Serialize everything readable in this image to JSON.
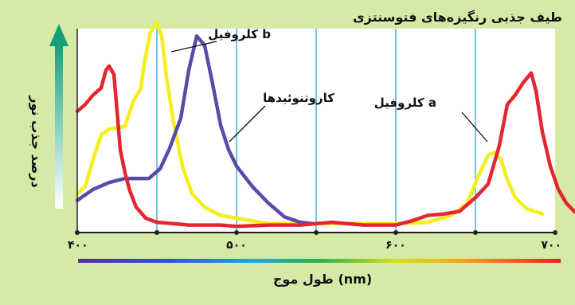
{
  "chart_data": {
    "type": "line",
    "title": "طیف جذبی رنگیزه‌های فتوسنتزی",
    "xlabel": "طول موج (nm)",
    "ylabel": "درصد جذب نور",
    "xlim": [
      400,
      700
    ],
    "x_ticks": [
      {
        "value": 400,
        "label": "۴۰۰"
      },
      {
        "value": 500,
        "label": "۵۰۰"
      },
      {
        "value": 600,
        "label": "۶۰۰"
      },
      {
        "value": 700,
        "label": "۷۰۰"
      }
    ],
    "vertical_gridlines": [
      450,
      500,
      550,
      600,
      650
    ],
    "background_color": "#d6eaa8",
    "series": [
      {
        "name": "کلروفیل b",
        "color": "#f4ee1c",
        "points": [
          [
            400,
            25
          ],
          [
            405,
            30
          ],
          [
            410,
            50
          ],
          [
            415,
            68
          ],
          [
            420,
            72
          ],
          [
            425,
            73
          ],
          [
            430,
            74
          ],
          [
            435,
            92
          ],
          [
            440,
            102
          ],
          [
            442,
            120
          ],
          [
            446,
            143
          ],
          [
            450,
            150
          ],
          [
            453,
            140
          ],
          [
            456,
            110
          ],
          [
            460,
            80
          ],
          [
            466,
            45
          ],
          [
            472,
            25
          ],
          [
            480,
            15
          ],
          [
            490,
            9
          ],
          [
            500,
            7
          ],
          [
            520,
            3
          ],
          [
            540,
            3
          ],
          [
            560,
            3
          ],
          [
            580,
            3
          ],
          [
            600,
            3
          ],
          [
            620,
            4
          ],
          [
            635,
            9
          ],
          [
            645,
            18
          ],
          [
            652,
            38
          ],
          [
            658,
            53
          ],
          [
            662,
            55
          ],
          [
            666,
            50
          ],
          [
            670,
            35
          ],
          [
            675,
            22
          ],
          [
            682,
            14
          ],
          [
            690,
            11
          ],
          [
            692,
            10
          ]
        ]
      },
      {
        "name": "کاروتنوئیدها",
        "color": "#5b4ba8",
        "points": [
          [
            400,
            20
          ],
          [
            410,
            28
          ],
          [
            420,
            33
          ],
          [
            430,
            36
          ],
          [
            440,
            36
          ],
          [
            445,
            36
          ],
          [
            452,
            43
          ],
          [
            458,
            58
          ],
          [
            465,
            80
          ],
          [
            470,
            115
          ],
          [
            475,
            140
          ],
          [
            480,
            133
          ],
          [
            485,
            105
          ],
          [
            490,
            75
          ],
          [
            495,
            57
          ],
          [
            500,
            45
          ],
          [
            510,
            30
          ],
          [
            520,
            18
          ],
          [
            530,
            8
          ],
          [
            540,
            4
          ],
          [
            548,
            3
          ]
        ]
      },
      {
        "name": "کلروفیل a",
        "color": "#e3262f",
        "points": [
          [
            400,
            85
          ],
          [
            405,
            90
          ],
          [
            410,
            97
          ],
          [
            415,
            102
          ],
          [
            418,
            115
          ],
          [
            420,
            118
          ],
          [
            423,
            112
          ],
          [
            425,
            85
          ],
          [
            427,
            57
          ],
          [
            430,
            40
          ],
          [
            433,
            27
          ],
          [
            437,
            15
          ],
          [
            443,
            7
          ],
          [
            450,
            4
          ],
          [
            460,
            3
          ],
          [
            470,
            2
          ],
          [
            480,
            2
          ],
          [
            490,
            2
          ],
          [
            500,
            1
          ],
          [
            520,
            2
          ],
          [
            540,
            2
          ],
          [
            560,
            4
          ],
          [
            580,
            2
          ],
          [
            600,
            2
          ],
          [
            610,
            5
          ],
          [
            620,
            9
          ],
          [
            630,
            10
          ],
          [
            640,
            12
          ],
          [
            645,
            17
          ],
          [
            650,
            22
          ],
          [
            658,
            32
          ],
          [
            665,
            60
          ],
          [
            670,
            90
          ],
          [
            675,
            97
          ],
          [
            680,
            106
          ],
          [
            685,
            113
          ],
          [
            688,
            100
          ],
          [
            692,
            70
          ],
          [
            697,
            45
          ],
          [
            702,
            28
          ],
          [
            707,
            18
          ],
          [
            712,
            12
          ],
          [
            718,
            9
          ],
          [
            725,
            6
          ],
          [
            730,
            5
          ]
        ]
      }
    ],
    "annotations": [
      {
        "text": "کلروفیل b",
        "series": "کلروفیل b"
      },
      {
        "text": "کاروتنوئیدها",
        "series": "کاروتنوئیدها"
      },
      {
        "text": "کلروفیل a",
        "series": "کلروفیل a"
      }
    ]
  }
}
